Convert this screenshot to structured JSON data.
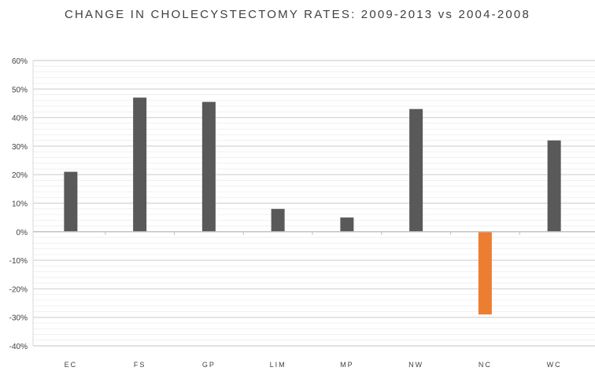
{
  "chart_data": {
    "type": "bar",
    "title": "CHANGE IN CHOLECYSTECTOMY RATES: 2009-2013 vs 2004-2008",
    "xlabel": "",
    "ylabel": "",
    "categories": [
      "EC",
      "FS",
      "GP",
      "LIM",
      "MP",
      "NW",
      "NC",
      "WC"
    ],
    "values": [
      21,
      47,
      45.5,
      8,
      5,
      43,
      -29,
      32
    ],
    "ylim": [
      -40,
      60
    ],
    "yticks": [
      60,
      50,
      40,
      30,
      20,
      10,
      0,
      -10,
      -20,
      -30,
      -40
    ],
    "ytick_labels": [
      "60%",
      "50%",
      "40%",
      "30%",
      "20%",
      "10%",
      "0%",
      "-10%",
      "-20%",
      "-30%",
      "-40%"
    ],
    "grid": true,
    "colors": {
      "positive": "#595959",
      "negative": "#ed7d31",
      "grid_major": "#d9d9d9",
      "grid_minor": "#f0f0f0"
    }
  }
}
